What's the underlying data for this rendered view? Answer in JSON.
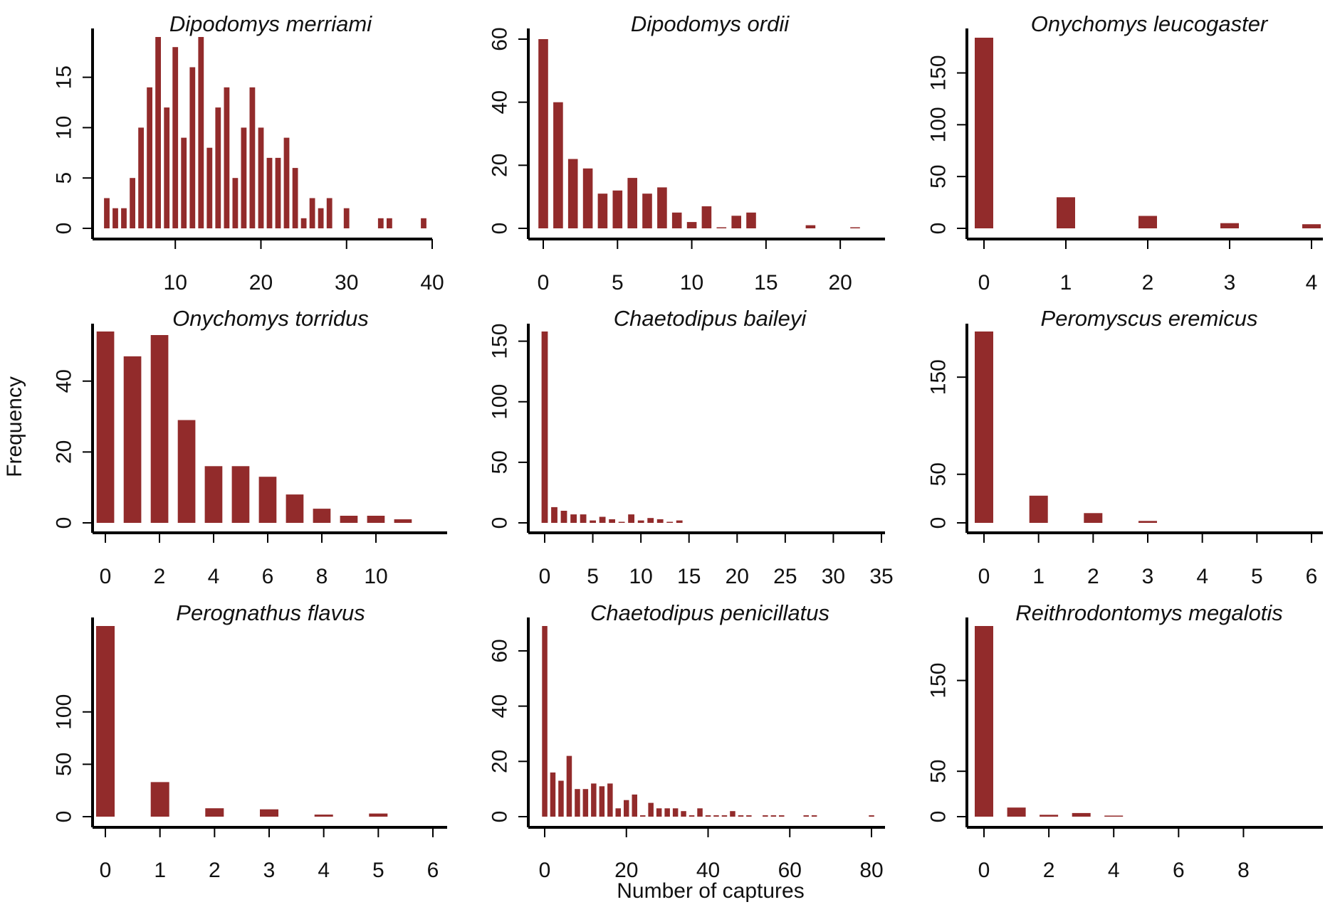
{
  "figure": {
    "xlabel": "Number of captures",
    "ylabel": "Frequency",
    "bar_color": "#922b2b",
    "axis_color": "#000000"
  },
  "chart_data": [
    {
      "type": "bar",
      "title": "Dipodomys merriami",
      "xlabel": "Number of captures",
      "ylabel": "Frequency",
      "xlim": [
        2,
        40
      ],
      "ylim": [
        0,
        19
      ],
      "xticks": [
        "10",
        "20",
        "30",
        "40"
      ],
      "yticks": [
        "0",
        "5",
        "10",
        "15"
      ],
      "x": [
        2,
        3,
        4,
        5,
        6,
        7,
        8,
        9,
        10,
        11,
        12,
        13,
        14,
        15,
        16,
        17,
        18,
        19,
        20,
        21,
        22,
        23,
        24,
        25,
        26,
        27,
        28,
        30,
        34,
        35,
        39
      ],
      "values": [
        3,
        2,
        2,
        5,
        10,
        14,
        19,
        12,
        18,
        9,
        16,
        19,
        8,
        12,
        14,
        5,
        10,
        14,
        10,
        7,
        7,
        9,
        6,
        1,
        3,
        2,
        3,
        2,
        1,
        1,
        1
      ]
    },
    {
      "type": "bar",
      "title": "Dipodomys ordii",
      "xlabel": "Number of captures",
      "ylabel": "Frequency",
      "xlim": [
        0,
        21
      ],
      "ylim": [
        0,
        60
      ],
      "xticks": [
        "0",
        "5",
        "10",
        "15",
        "20"
      ],
      "yticks": [
        "0",
        "20",
        "40",
        "60"
      ],
      "x": [
        0,
        1,
        2,
        3,
        4,
        5,
        6,
        7,
        8,
        9,
        10,
        11,
        12,
        13,
        14,
        18,
        21
      ],
      "values": [
        60,
        40,
        22,
        19,
        11,
        12,
        16,
        11,
        13,
        5,
        2,
        7,
        0.3,
        4,
        5,
        1,
        0.3
      ]
    },
    {
      "type": "bar",
      "title": "Onychomys leucogaster",
      "xlabel": "Number of captures",
      "ylabel": "Frequency",
      "xlim": [
        0,
        4
      ],
      "ylim": [
        0,
        184
      ],
      "xticks": [
        "0",
        "1",
        "2",
        "3",
        "4"
      ],
      "yticks": [
        "0",
        "50",
        "100",
        "150"
      ],
      "x": [
        0,
        1,
        2,
        3,
        4
      ],
      "values": [
        184,
        30,
        12,
        5,
        4
      ]
    },
    {
      "type": "bar",
      "title": "Onychomys torridus",
      "xlabel": "Number of captures",
      "ylabel": "Frequency",
      "xlim": [
        0,
        11
      ],
      "ylim": [
        0,
        54
      ],
      "xticks": [
        "0",
        "2",
        "4",
        "6",
        "8",
        "10"
      ],
      "yticks": [
        "0",
        "20",
        "40"
      ],
      "x": [
        0,
        1,
        2,
        3,
        4,
        5,
        6,
        7,
        8,
        9,
        10,
        11
      ],
      "values": [
        54,
        47,
        53,
        29,
        16,
        16,
        13,
        8,
        4,
        2,
        2,
        1
      ]
    },
    {
      "type": "bar",
      "title": "Chaetodipus baileyi",
      "xlabel": "Number of captures",
      "ylabel": "Frequency",
      "xlim": [
        0,
        35
      ],
      "ylim": [
        0,
        158
      ],
      "xticks": [
        "0",
        "5",
        "10",
        "15",
        "20",
        "25",
        "30",
        "35"
      ],
      "yticks": [
        "0",
        "50",
        "100",
        "150"
      ],
      "x": [
        0,
        1,
        2,
        3,
        4,
        5,
        6,
        7,
        8,
        9,
        10,
        11,
        12,
        13,
        14
      ],
      "values": [
        158,
        13,
        10,
        7,
        7,
        2,
        5,
        3,
        0.5,
        7,
        2,
        4,
        3,
        0.3,
        2
      ]
    },
    {
      "type": "bar",
      "title": "Peromyscus eremicus",
      "xlabel": "Number of captures",
      "ylabel": "Frequency",
      "xlim": [
        0,
        6
      ],
      "ylim": [
        0,
        197
      ],
      "xticks": [
        "0",
        "1",
        "2",
        "3",
        "4",
        "5",
        "6"
      ],
      "yticks": [
        "0",
        "50",
        "150"
      ],
      "x": [
        0,
        1,
        2,
        3
      ],
      "values": [
        197,
        28,
        10,
        2
      ]
    },
    {
      "type": "bar",
      "title": "Perognathus flavus",
      "xlabel": "Number of captures",
      "ylabel": "Frequency",
      "xlim": [
        0,
        6
      ],
      "ylim": [
        0,
        182
      ],
      "xticks": [
        "0",
        "1",
        "2",
        "3",
        "4",
        "5",
        "6"
      ],
      "yticks": [
        "0",
        "50",
        "100"
      ],
      "x": [
        0,
        1,
        2,
        3,
        4,
        5
      ],
      "values": [
        182,
        33,
        8,
        7,
        2,
        3
      ]
    },
    {
      "type": "bar",
      "title": "Chaetodipus penicillatus",
      "xlabel": "Number of captures",
      "ylabel": "Frequency",
      "xlim": [
        0,
        80
      ],
      "ylim": [
        0,
        69
      ],
      "xticks": [
        "0",
        "20",
        "40",
        "60",
        "80"
      ],
      "yticks": [
        "0",
        "20",
        "40",
        "60"
      ],
      "x": [
        0,
        2,
        4,
        6,
        8,
        10,
        12,
        14,
        16,
        18,
        20,
        22,
        24,
        26,
        28,
        30,
        32,
        34,
        36,
        38,
        40,
        42,
        44,
        46,
        48,
        50,
        54,
        56,
        58,
        64,
        66,
        80
      ],
      "values": [
        69,
        16,
        13,
        22,
        10,
        10,
        12,
        11,
        12,
        3,
        6,
        8,
        0.5,
        5,
        3,
        3,
        3,
        2,
        0.5,
        3,
        0.5,
        0.5,
        0.5,
        2,
        0.5,
        0.5,
        0.5,
        0.5,
        0.5,
        0.5,
        0.5,
        0.5
      ]
    },
    {
      "type": "bar",
      "title": "Reithrodontomys megalotis",
      "xlabel": "Number of captures",
      "ylabel": "Frequency",
      "xlim": [
        0,
        9
      ],
      "ylim": [
        0,
        210
      ],
      "xticks": [
        "0",
        "2",
        "4",
        "6",
        "8"
      ],
      "yticks": [
        "0",
        "50",
        "150"
      ],
      "x": [
        0,
        1,
        2,
        3,
        4
      ],
      "values": [
        210,
        10,
        2,
        4,
        1
      ]
    }
  ]
}
